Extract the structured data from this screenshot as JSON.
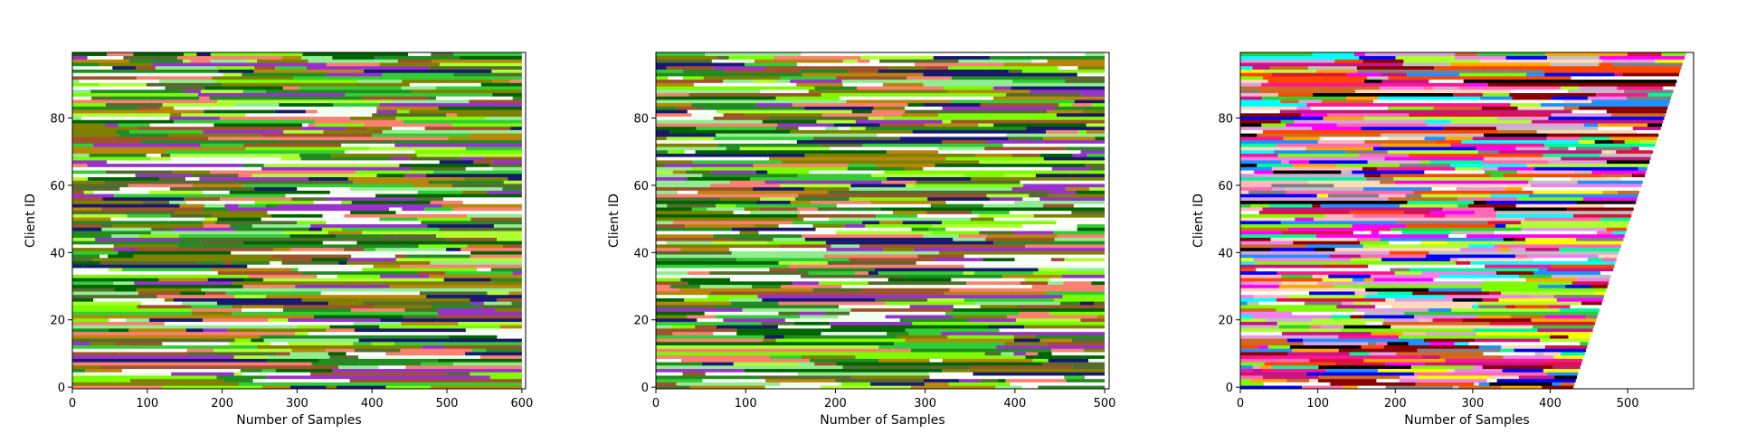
{
  "chart_data": [
    {
      "type": "bar",
      "orientation": "horizontal-stacked",
      "description_of_marks": "one row per client; row is split into colored segments, one segment per class, lengths sum to the client's sample count",
      "xlabel": "Number of Samples",
      "ylabel": "Client ID",
      "xlim": [
        0,
        605
      ],
      "ylim": [
        -0.5,
        99.5
      ],
      "xticks": [
        "0",
        "100",
        "200",
        "300",
        "400",
        "500",
        "600"
      ],
      "yticks": [
        "0",
        "20",
        "40",
        "60",
        "80"
      ],
      "clients": 100,
      "samples_per_client": 600,
      "total_profile": "constant",
      "palette": [
        "#006400",
        "#228B22",
        "#32CD32",
        "#90EE90",
        "#ADFF2F",
        "#808000",
        "#B8860B",
        "#FA8072",
        "#A0522D",
        "#191970",
        "#9932CC",
        "#FFFFFF",
        "#F0FFF0",
        "#556B2F",
        "#7CFC00"
      ]
    },
    {
      "type": "bar",
      "orientation": "horizontal-stacked",
      "xlabel": "Number of Samples",
      "ylabel": "Client ID",
      "xlim": [
        0,
        505
      ],
      "ylim": [
        -0.5,
        99.5
      ],
      "xticks": [
        "0",
        "100",
        "200",
        "300",
        "400",
        "500"
      ],
      "yticks": [
        "0",
        "20",
        "40",
        "60",
        "80"
      ],
      "clients": 100,
      "samples_per_client": 500,
      "total_profile": "constant",
      "palette": [
        "#006400",
        "#228B22",
        "#32CD32",
        "#90EE90",
        "#ADFF2F",
        "#808000",
        "#B8860B",
        "#FA8072",
        "#A0522D",
        "#191970",
        "#9932CC",
        "#FFFFFF",
        "#F0FFF0",
        "#556B2F",
        "#7CFC00"
      ]
    },
    {
      "type": "bar",
      "orientation": "horizontal-stacked",
      "xlabel": "Number of Samples",
      "ylabel": "Client ID",
      "xlim": [
        0,
        585
      ],
      "ylim": [
        -0.5,
        99.5
      ],
      "xticks": [
        "0",
        "100",
        "200",
        "300",
        "400",
        "500"
      ],
      "yticks": [
        "0",
        "20",
        "40",
        "60",
        "80"
      ],
      "clients": 100,
      "samples_per_client_min": 430,
      "samples_per_client_max": 575,
      "total_profile": "increasing-with-client-id",
      "palette": [
        "#FF00FF",
        "#FF69B4",
        "#FF1493",
        "#C71585",
        "#00FFFF",
        "#1E90FF",
        "#0000FF",
        "#32CD32",
        "#7CFC00",
        "#ADFF2F",
        "#FF4500",
        "#FFA500",
        "#D2691E",
        "#FFFF00",
        "#DC143C",
        "#8B0000",
        "#000000",
        "#808080",
        "#C0C0C0",
        "#FFFFFF",
        "#EE82EE",
        "#00FA9A",
        "#FFDAB9",
        "#DDA0DD",
        "#FFB6C1"
      ]
    }
  ]
}
